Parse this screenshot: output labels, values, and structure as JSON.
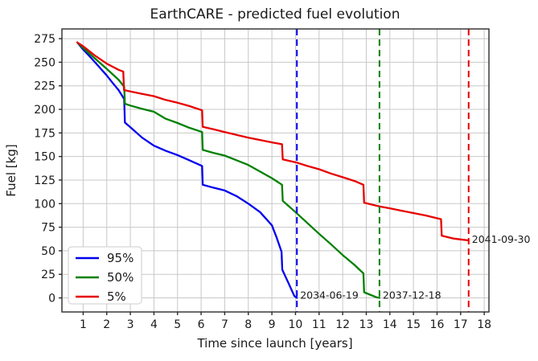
{
  "chart_data": {
    "type": "line",
    "title": "EarthCARE - predicted fuel evolution",
    "xlabel": "Time since launch [years]",
    "ylabel": "Fuel [kg]",
    "xlim": [
      0.1,
      18.2
    ],
    "ylim": [
      -14.9,
      285.3
    ],
    "xticks": [
      1,
      2,
      3,
      4,
      5,
      6,
      7,
      8,
      9,
      10,
      11,
      12,
      13,
      14,
      15,
      16,
      17,
      18
    ],
    "yticks": [
      0,
      25,
      50,
      75,
      100,
      125,
      150,
      175,
      200,
      225,
      250,
      275
    ],
    "grid": true,
    "grid_color": "#c8c8c8",
    "axis_color": "#2b2b2b",
    "legend_position": "lower-left",
    "series": [
      {
        "name": "95%",
        "color": "#0000ee",
        "points": [
          [
            0.75,
            271
          ],
          [
            1,
            263.5
          ],
          [
            1.25,
            257
          ],
          [
            1.5,
            250
          ],
          [
            1.75,
            243
          ],
          [
            2,
            236
          ],
          [
            2.25,
            228
          ],
          [
            2.5,
            220.5
          ],
          [
            2.74,
            211
          ],
          [
            2.77,
            186
          ],
          [
            3,
            181
          ],
          [
            3.5,
            170
          ],
          [
            4,
            161.5
          ],
          [
            4.5,
            156
          ],
          [
            5,
            151.5
          ],
          [
            5.5,
            146
          ],
          [
            6.04,
            140
          ],
          [
            6.07,
            120
          ],
          [
            6.5,
            117
          ],
          [
            7,
            114
          ],
          [
            7.5,
            108
          ],
          [
            8,
            100
          ],
          [
            8.5,
            91
          ],
          [
            9,
            77
          ],
          [
            9.2,
            64
          ],
          [
            9.41,
            49
          ],
          [
            9.44,
            30
          ],
          [
            9.7,
            16
          ],
          [
            9.95,
            2
          ],
          [
            10.06,
            0
          ]
        ]
      },
      {
        "name": "50%",
        "color": "#008000",
        "points": [
          [
            0.75,
            271
          ],
          [
            1,
            265
          ],
          [
            1.5,
            254
          ],
          [
            2,
            243
          ],
          [
            2.5,
            231.5
          ],
          [
            2.74,
            224
          ],
          [
            2.77,
            206
          ],
          [
            3,
            204
          ],
          [
            3.5,
            200.5
          ],
          [
            4,
            197.5
          ],
          [
            4.5,
            190
          ],
          [
            5,
            185.5
          ],
          [
            5.5,
            180.5
          ],
          [
            6.04,
            176
          ],
          [
            6.07,
            157
          ],
          [
            6.5,
            154
          ],
          [
            7,
            151
          ],
          [
            7.5,
            146
          ],
          [
            8,
            141
          ],
          [
            8.5,
            134
          ],
          [
            9,
            127
          ],
          [
            9.43,
            120
          ],
          [
            9.46,
            103
          ],
          [
            10,
            91
          ],
          [
            10.5,
            79.5
          ],
          [
            11,
            68
          ],
          [
            11.5,
            57
          ],
          [
            12,
            45.5
          ],
          [
            12.5,
            35
          ],
          [
            12.88,
            26
          ],
          [
            12.91,
            6
          ],
          [
            13.2,
            3
          ],
          [
            13.45,
            0.5
          ],
          [
            13.56,
            0
          ]
        ]
      },
      {
        "name": "5%",
        "color": "#e60000",
        "points": [
          [
            0.75,
            271
          ],
          [
            1,
            267
          ],
          [
            1.5,
            257
          ],
          [
            2,
            248.5
          ],
          [
            2.5,
            242
          ],
          [
            2.7,
            240
          ],
          [
            2.73,
            220.5
          ],
          [
            3,
            219
          ],
          [
            3.5,
            216.5
          ],
          [
            4,
            214
          ],
          [
            4.5,
            210
          ],
          [
            5,
            207
          ],
          [
            5.5,
            203.5
          ],
          [
            6.04,
            199
          ],
          [
            6.07,
            181.5
          ],
          [
            6.5,
            179
          ],
          [
            7,
            176
          ],
          [
            7.5,
            173
          ],
          [
            8,
            170
          ],
          [
            8.5,
            167.5
          ],
          [
            9,
            165
          ],
          [
            9.43,
            163
          ],
          [
            9.46,
            147
          ],
          [
            10.06,
            143.5
          ],
          [
            10.5,
            140
          ],
          [
            11,
            136.5
          ],
          [
            11.5,
            132
          ],
          [
            12,
            128
          ],
          [
            12.5,
            124
          ],
          [
            12.88,
            120
          ],
          [
            12.91,
            101
          ],
          [
            13.56,
            97
          ],
          [
            14,
            95
          ],
          [
            14.5,
            92.5
          ],
          [
            15,
            90
          ],
          [
            15.5,
            87.5
          ],
          [
            16.17,
            83.5
          ],
          [
            16.2,
            66
          ],
          [
            16.7,
            63
          ],
          [
            17,
            62
          ],
          [
            17.34,
            61
          ]
        ]
      }
    ],
    "event_lines": [
      {
        "date": "2034-06-19",
        "x": 10.06,
        "series": "95%",
        "color": "#0000ee",
        "label_fuel": 2.5
      },
      {
        "date": "2037-12-18",
        "x": 13.56,
        "series": "50%",
        "color": "#008000",
        "label_fuel": 2.5
      },
      {
        "date": "2041-09-30",
        "x": 17.34,
        "series": "5%",
        "color": "#e60000",
        "label_fuel": 62
      }
    ]
  }
}
